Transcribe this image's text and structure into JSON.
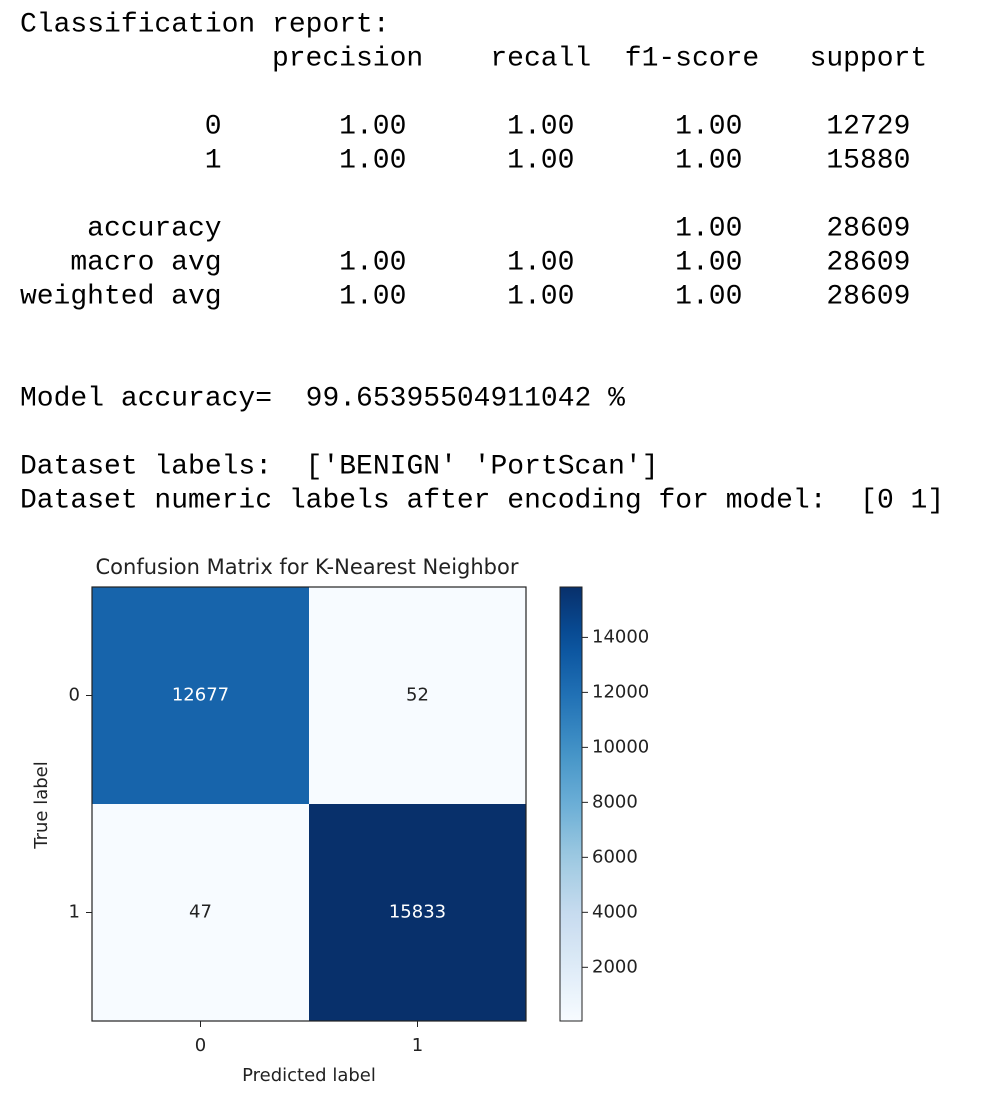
{
  "report": {
    "title": "Classification report:",
    "columns": [
      "precision",
      "recall",
      "f1-score",
      "support"
    ],
    "rows": [
      {
        "label": "0",
        "values": [
          "1.00",
          "1.00",
          "1.00",
          "12729"
        ]
      },
      {
        "label": "1",
        "values": [
          "1.00",
          "1.00",
          "1.00",
          "15880"
        ]
      }
    ],
    "accuracy": {
      "label": "accuracy",
      "values": [
        "1.00",
        "28609"
      ]
    },
    "averages": [
      {
        "label": "macro avg",
        "values": [
          "1.00",
          "1.00",
          "1.00",
          "28609"
        ]
      },
      {
        "label": "weighted avg",
        "values": [
          "1.00",
          "1.00",
          "1.00",
          "28609"
        ]
      }
    ]
  },
  "lines": [
    "Model accuracy=  99.65395504911042 %",
    "Dataset labels:  ['BENIGN' 'PortScan']",
    "Dataset numeric labels after encoding for model:  [0 1]"
  ],
  "chart_data": {
    "type": "heatmap",
    "title": "Confusion Matrix for K-Nearest Neighbor",
    "x_label": "Predicted label",
    "y_label": "True label",
    "x_categories": [
      "0",
      "1"
    ],
    "y_categories": [
      "0",
      "1"
    ],
    "values": [
      [
        12677,
        52
      ],
      [
        47,
        15833
      ]
    ],
    "colormap": "Blues",
    "clim": [
      47,
      15833
    ],
    "cticks": [
      2000,
      4000,
      6000,
      8000,
      10000,
      12000,
      14000
    ]
  }
}
